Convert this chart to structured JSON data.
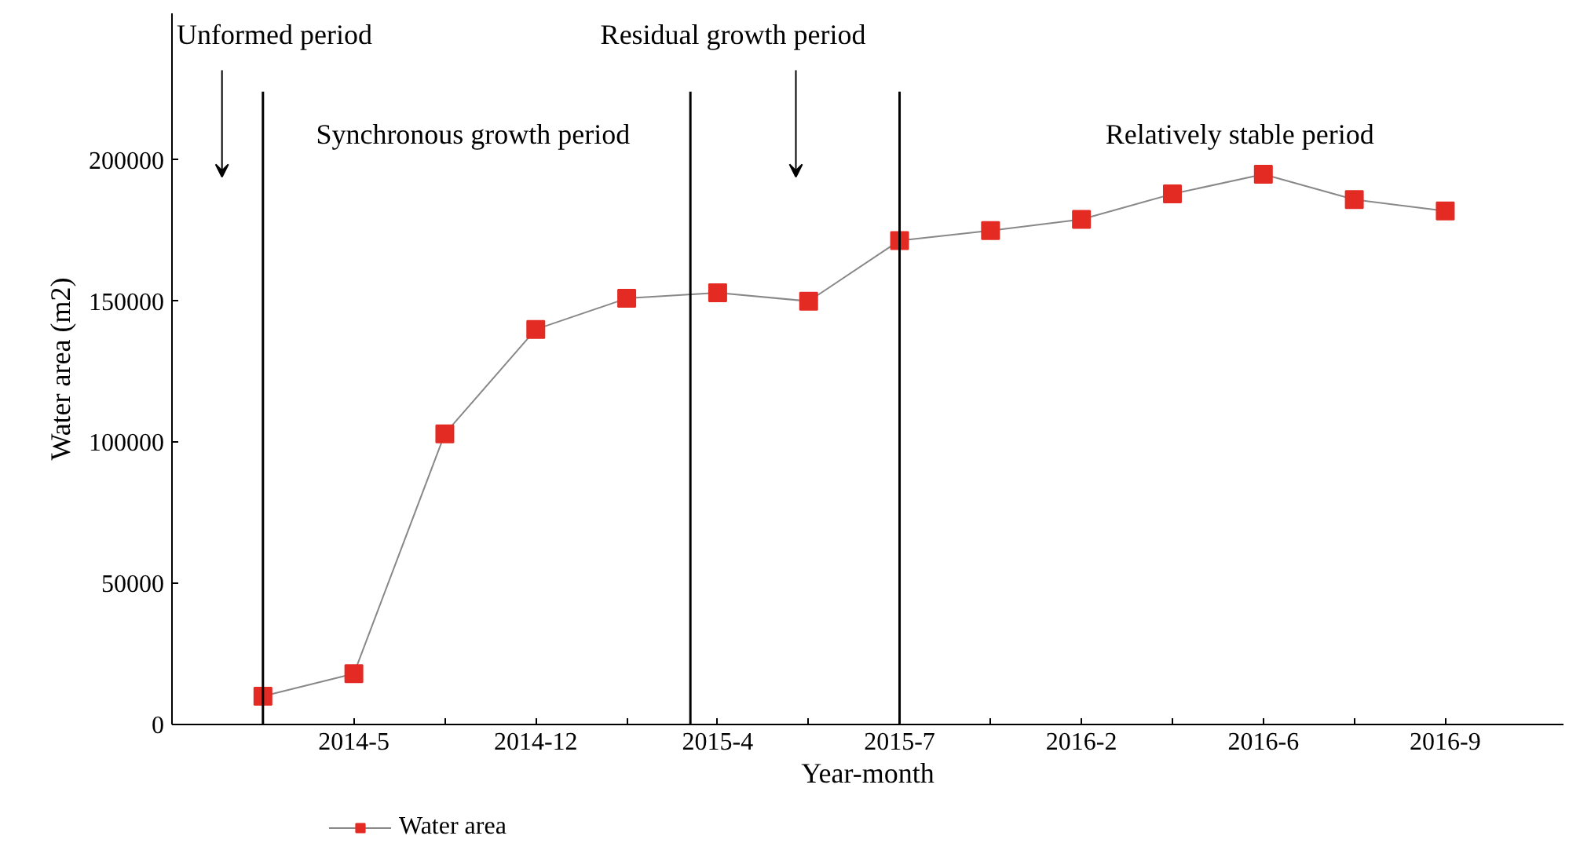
{
  "chart_data": {
    "type": "line",
    "xlabel": "Year-month",
    "ylabel": "Water area (m2)",
    "categories": [
      null,
      "2014-5",
      null,
      "2014-12",
      null,
      "2015-4",
      null,
      "2015-7",
      null,
      "2016-2",
      null,
      "2016-6",
      null,
      "2016-9"
    ],
    "ylim": [
      0,
      252000
    ],
    "yticks": [
      0,
      50000,
      100000,
      150000,
      200000
    ],
    "series": [
      {
        "name": "Water area",
        "color": "#e32b24",
        "values": [
          10000,
          18000,
          103000,
          140000,
          151000,
          153000,
          150000,
          171500,
          175000,
          179000,
          188000,
          195000,
          186000,
          182000
        ]
      }
    ],
    "marker": "square",
    "line_style": "solid",
    "legend": "bottom left",
    "annotations": [
      "Unformed period",
      "Synchronous growth period",
      "Residual growth period",
      "Relatively stable period"
    ]
  }
}
